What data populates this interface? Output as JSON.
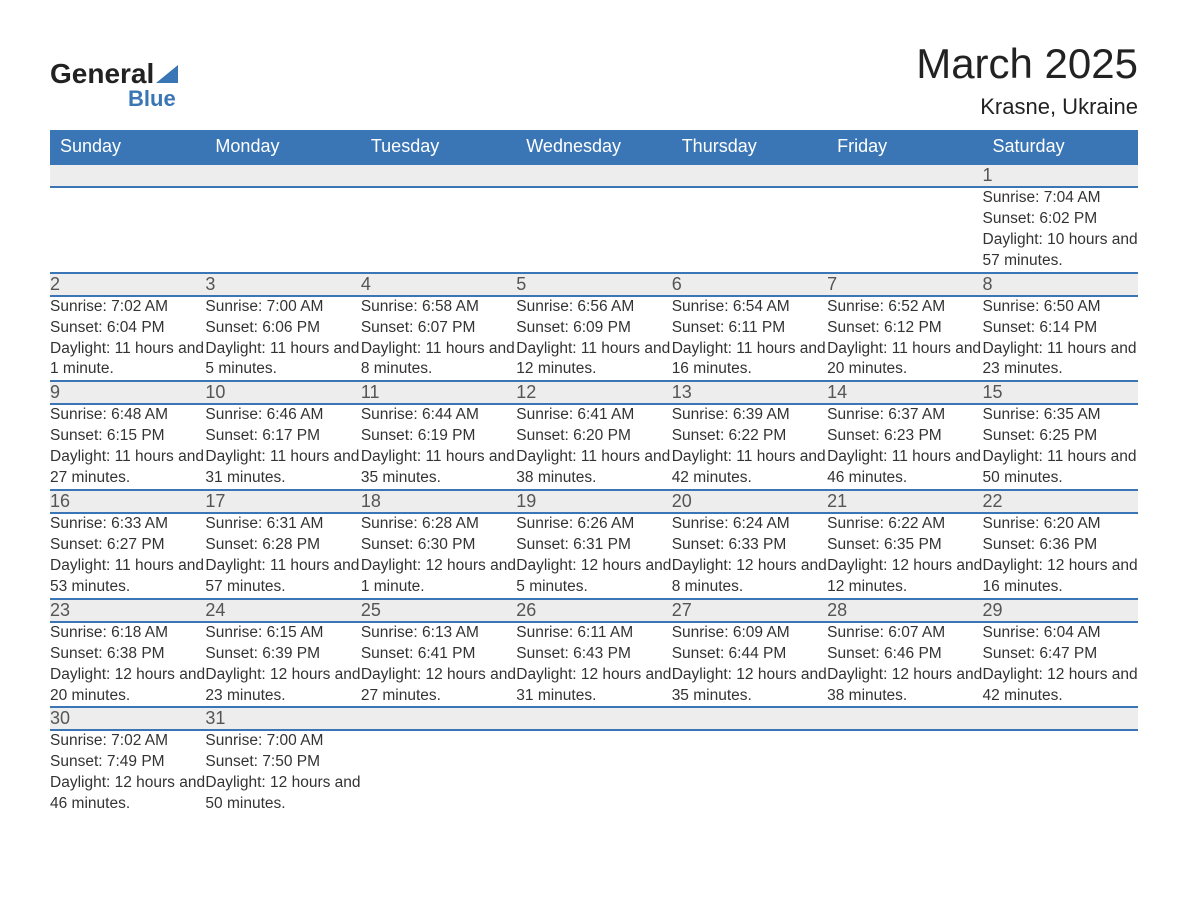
{
  "brand": {
    "name": "General",
    "sub": "Blue"
  },
  "title": "March 2025",
  "location": "Krasne, Ukraine",
  "colors": {
    "header_bg": "#3a76b5",
    "header_text": "#ffffff",
    "daynum_bg": "#ededed",
    "border": "#3a76b5"
  },
  "weekdays": [
    "Sunday",
    "Monday",
    "Tuesday",
    "Wednesday",
    "Thursday",
    "Friday",
    "Saturday"
  ],
  "weeks": [
    [
      null,
      null,
      null,
      null,
      null,
      null,
      {
        "n": "1",
        "sunrise": "7:04 AM",
        "sunset": "6:02 PM",
        "daylight": "10 hours and 57 minutes."
      }
    ],
    [
      {
        "n": "2",
        "sunrise": "7:02 AM",
        "sunset": "6:04 PM",
        "daylight": "11 hours and 1 minute."
      },
      {
        "n": "3",
        "sunrise": "7:00 AM",
        "sunset": "6:06 PM",
        "daylight": "11 hours and 5 minutes."
      },
      {
        "n": "4",
        "sunrise": "6:58 AM",
        "sunset": "6:07 PM",
        "daylight": "11 hours and 8 minutes."
      },
      {
        "n": "5",
        "sunrise": "6:56 AM",
        "sunset": "6:09 PM",
        "daylight": "11 hours and 12 minutes."
      },
      {
        "n": "6",
        "sunrise": "6:54 AM",
        "sunset": "6:11 PM",
        "daylight": "11 hours and 16 minutes."
      },
      {
        "n": "7",
        "sunrise": "6:52 AM",
        "sunset": "6:12 PM",
        "daylight": "11 hours and 20 minutes."
      },
      {
        "n": "8",
        "sunrise": "6:50 AM",
        "sunset": "6:14 PM",
        "daylight": "11 hours and 23 minutes."
      }
    ],
    [
      {
        "n": "9",
        "sunrise": "6:48 AM",
        "sunset": "6:15 PM",
        "daylight": "11 hours and 27 minutes."
      },
      {
        "n": "10",
        "sunrise": "6:46 AM",
        "sunset": "6:17 PM",
        "daylight": "11 hours and 31 minutes."
      },
      {
        "n": "11",
        "sunrise": "6:44 AM",
        "sunset": "6:19 PM",
        "daylight": "11 hours and 35 minutes."
      },
      {
        "n": "12",
        "sunrise": "6:41 AM",
        "sunset": "6:20 PM",
        "daylight": "11 hours and 38 minutes."
      },
      {
        "n": "13",
        "sunrise": "6:39 AM",
        "sunset": "6:22 PM",
        "daylight": "11 hours and 42 minutes."
      },
      {
        "n": "14",
        "sunrise": "6:37 AM",
        "sunset": "6:23 PM",
        "daylight": "11 hours and 46 minutes."
      },
      {
        "n": "15",
        "sunrise": "6:35 AM",
        "sunset": "6:25 PM",
        "daylight": "11 hours and 50 minutes."
      }
    ],
    [
      {
        "n": "16",
        "sunrise": "6:33 AM",
        "sunset": "6:27 PM",
        "daylight": "11 hours and 53 minutes."
      },
      {
        "n": "17",
        "sunrise": "6:31 AM",
        "sunset": "6:28 PM",
        "daylight": "11 hours and 57 minutes."
      },
      {
        "n": "18",
        "sunrise": "6:28 AM",
        "sunset": "6:30 PM",
        "daylight": "12 hours and 1 minute."
      },
      {
        "n": "19",
        "sunrise": "6:26 AM",
        "sunset": "6:31 PM",
        "daylight": "12 hours and 5 minutes."
      },
      {
        "n": "20",
        "sunrise": "6:24 AM",
        "sunset": "6:33 PM",
        "daylight": "12 hours and 8 minutes."
      },
      {
        "n": "21",
        "sunrise": "6:22 AM",
        "sunset": "6:35 PM",
        "daylight": "12 hours and 12 minutes."
      },
      {
        "n": "22",
        "sunrise": "6:20 AM",
        "sunset": "6:36 PM",
        "daylight": "12 hours and 16 minutes."
      }
    ],
    [
      {
        "n": "23",
        "sunrise": "6:18 AM",
        "sunset": "6:38 PM",
        "daylight": "12 hours and 20 minutes."
      },
      {
        "n": "24",
        "sunrise": "6:15 AM",
        "sunset": "6:39 PM",
        "daylight": "12 hours and 23 minutes."
      },
      {
        "n": "25",
        "sunrise": "6:13 AM",
        "sunset": "6:41 PM",
        "daylight": "12 hours and 27 minutes."
      },
      {
        "n": "26",
        "sunrise": "6:11 AM",
        "sunset": "6:43 PM",
        "daylight": "12 hours and 31 minutes."
      },
      {
        "n": "27",
        "sunrise": "6:09 AM",
        "sunset": "6:44 PM",
        "daylight": "12 hours and 35 minutes."
      },
      {
        "n": "28",
        "sunrise": "6:07 AM",
        "sunset": "6:46 PM",
        "daylight": "12 hours and 38 minutes."
      },
      {
        "n": "29",
        "sunrise": "6:04 AM",
        "sunset": "6:47 PM",
        "daylight": "12 hours and 42 minutes."
      }
    ],
    [
      {
        "n": "30",
        "sunrise": "7:02 AM",
        "sunset": "7:49 PM",
        "daylight": "12 hours and 46 minutes."
      },
      {
        "n": "31",
        "sunrise": "7:00 AM",
        "sunset": "7:50 PM",
        "daylight": "12 hours and 50 minutes."
      },
      null,
      null,
      null,
      null,
      null
    ]
  ],
  "labels": {
    "sunrise": "Sunrise:",
    "sunset": "Sunset:",
    "daylight": "Daylight:"
  }
}
